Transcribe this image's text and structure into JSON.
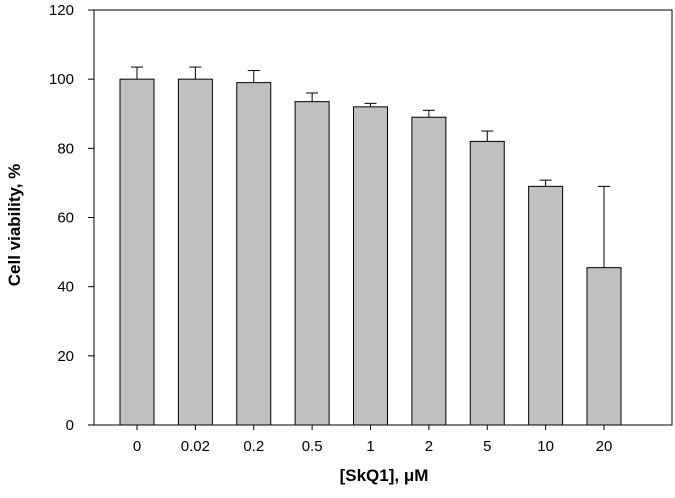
{
  "chart_data": {
    "type": "bar",
    "title": "",
    "xlabel": "[SkQ1], μM",
    "ylabel": "Cell viability, %",
    "categories": [
      "0",
      "0.02",
      "0.2",
      "0.5",
      "1",
      "2",
      "5",
      "10",
      "20"
    ],
    "values": [
      100,
      100,
      99,
      93.5,
      92,
      89,
      82,
      69,
      45.5
    ],
    "error_bars": [
      3.5,
      3.5,
      3.5,
      2.5,
      1.0,
      2.0,
      3.0,
      1.8,
      23.5
    ],
    "yticks": [
      "0",
      "20",
      "40",
      "60",
      "80",
      "100",
      "120"
    ],
    "ylim": [
      0,
      120
    ],
    "grid": false,
    "legend": "none",
    "colors": {
      "bar_fill": "#c0c0c0",
      "bar_stroke": "#000000",
      "axis": "#000000"
    }
  }
}
